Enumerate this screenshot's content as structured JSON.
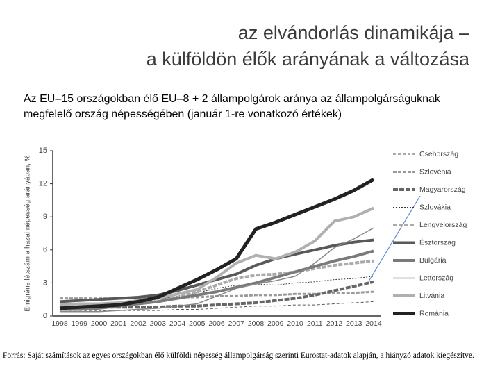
{
  "slide": {
    "title_lines": [
      "az elvándorlás dinamikája –",
      "a külföldön élők arányának a változása"
    ],
    "subtitle": "Az EU–15 országokban élő EU–8 + 2 állampolgárok aránya az állampolgárságuknak megfelelő ország népességében (január 1-re vonatkozó értékek)",
    "source": "Forrás: Saját számítások az egyes országokban élő külföldi népesség állampolgárság szerinti Eurostat-adatok alapján, a hiányzó adatok kiegészítve."
  },
  "chart_data": {
    "type": "line",
    "y_label": "Emigráns létszám a hazai népesség arányában, %",
    "categories": [
      "1998",
      "1999",
      "2000",
      "2001",
      "2002",
      "2003",
      "2004",
      "2005",
      "2006",
      "2007",
      "2008",
      "2009",
      "2010",
      "2011",
      "2012",
      "2013",
      "2014"
    ],
    "ylim": [
      0,
      15
    ],
    "yticks": [
      0,
      3,
      6,
      9,
      12,
      15
    ],
    "grid": false,
    "legend": "right",
    "series": [
      {
        "name": "Csehország",
        "color": "#555555",
        "dash": "4 3",
        "width": 1,
        "values": [
          0.5,
          0.5,
          0.5,
          0.5,
          0.5,
          0.5,
          0.6,
          0.6,
          0.7,
          0.8,
          0.9,
          0.9,
          1.0,
          1.0,
          1.1,
          1.2,
          1.3
        ]
      },
      {
        "name": "Szlovénia",
        "color": "#999999",
        "dash": "5 2",
        "width": 3,
        "values": [
          1.6,
          1.6,
          1.6,
          1.6,
          1.6,
          1.6,
          1.7,
          1.7,
          1.8,
          1.8,
          1.9,
          1.9,
          2.0,
          2.0,
          2.1,
          2.1,
          2.2
        ]
      },
      {
        "name": "Magyarország",
        "color": "#666666",
        "dash": "7 2",
        "width": 4,
        "values": [
          0.8,
          0.8,
          0.8,
          0.8,
          0.8,
          0.8,
          0.9,
          0.9,
          1.0,
          1.1,
          1.2,
          1.4,
          1.6,
          1.9,
          2.3,
          2.7,
          3.1
        ]
      },
      {
        "name": "Szlovákia",
        "color": "#333333",
        "dash": "2 2",
        "width": 1,
        "values": [
          1.0,
          1.0,
          1.1,
          1.2,
          1.3,
          1.5,
          1.8,
          2.1,
          2.5,
          2.8,
          2.9,
          2.8,
          3.0,
          3.1,
          3.3,
          3.4,
          3.6
        ]
      },
      {
        "name": "Lengyelország",
        "color": "#aaaaaa",
        "dash": "6 2",
        "width": 4,
        "values": [
          0.8,
          0.8,
          0.9,
          1.0,
          1.1,
          1.3,
          1.7,
          2.2,
          2.8,
          3.4,
          3.7,
          3.8,
          4.0,
          4.3,
          4.6,
          4.8,
          5.0
        ]
      },
      {
        "name": "Észtország",
        "color": "#595959",
        "dash": "none",
        "width": 4,
        "values": [
          1.3,
          1.4,
          1.5,
          1.6,
          1.7,
          1.9,
          2.3,
          2.8,
          3.3,
          3.8,
          4.6,
          5.2,
          5.6,
          6.0,
          6.4,
          6.7,
          6.9
        ]
      },
      {
        "name": "Bulgária",
        "color": "#7a7a7a",
        "dash": "none",
        "width": 4,
        "values": [
          0.6,
          0.6,
          0.7,
          0.9,
          1.1,
          1.3,
          1.6,
          1.9,
          2.2,
          2.6,
          3.0,
          3.5,
          4.0,
          4.5,
          5.0,
          5.4,
          5.9
        ]
      },
      {
        "name": "Lettország",
        "color": "#888888",
        "dash": "none",
        "width": 1.5,
        "values": [
          0.4,
          0.4,
          0.4,
          0.5,
          0.6,
          0.7,
          0.9,
          1.1,
          1.8,
          2.5,
          2.9,
          3.2,
          3.6,
          4.8,
          6.2,
          7.0,
          8.0
        ]
      },
      {
        "name": "Litvánia",
        "color": "#b0b0b0",
        "dash": "none",
        "width": 4,
        "values": [
          1.0,
          1.1,
          1.1,
          1.2,
          1.4,
          1.6,
          2.0,
          2.4,
          3.5,
          4.8,
          5.5,
          5.2,
          5.8,
          6.8,
          8.6,
          9.0,
          9.8
        ]
      },
      {
        "name": "Románia",
        "color": "#222222",
        "dash": "none",
        "width": 5,
        "values": [
          0.7,
          0.8,
          0.9,
          1.0,
          1.3,
          1.7,
          2.5,
          3.3,
          4.2,
          5.2,
          7.9,
          8.5,
          9.2,
          9.9,
          10.6,
          11.4,
          12.4
        ]
      }
    ]
  }
}
